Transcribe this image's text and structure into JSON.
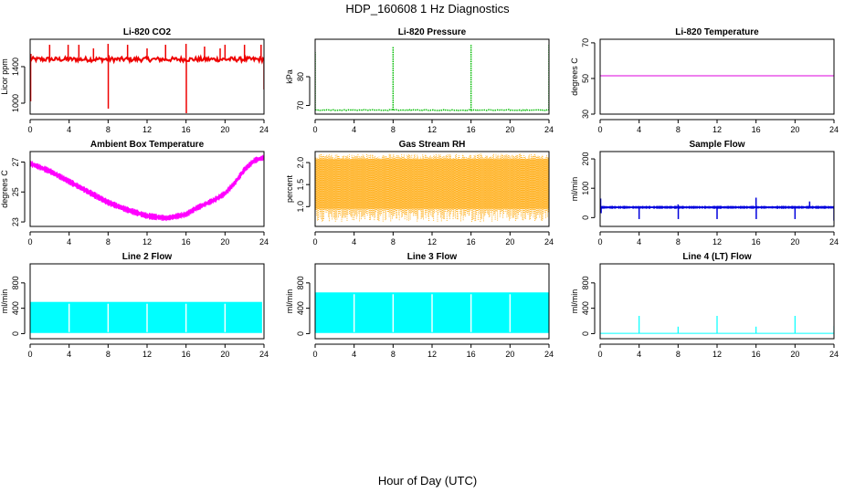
{
  "figure": {
    "title": "HDP_160608  1 Hz Diagnostics",
    "xlabel": "Hour of Day (UTC)"
  },
  "chart_data": [
    {
      "type": "line",
      "title": "Li-820 CO2",
      "ylabel": "Licor ppm",
      "xlim": [
        0,
        24
      ],
      "ylim": [
        880,
        1700
      ],
      "xticks": [
        "0",
        "4",
        "8",
        "12",
        "16",
        "20",
        "24"
      ],
      "yticks": [
        1000,
        1400
      ],
      "color": "#ee0000",
      "style": "dense-line",
      "baseline": 1480,
      "noise": 25,
      "spikes": [
        [
          0.05,
          1020
        ],
        [
          0.08,
          1540
        ],
        [
          2.0,
          1640
        ],
        [
          3.9,
          1640
        ],
        [
          5.0,
          1640
        ],
        [
          6.5,
          1600
        ],
        [
          8.0,
          1650
        ],
        [
          8.02,
          940
        ],
        [
          10.0,
          1640
        ],
        [
          12.0,
          1600
        ],
        [
          13.9,
          1640
        ],
        [
          16.0,
          1650
        ],
        [
          16.03,
          890
        ],
        [
          17.9,
          1620
        ],
        [
          19.5,
          1600
        ],
        [
          20.0,
          1640
        ],
        [
          22.0,
          1640
        ],
        [
          23.7,
          1640
        ],
        [
          24.0,
          1150
        ]
      ]
    },
    {
      "type": "line",
      "title": "Li-820 Pressure",
      "ylabel": "kPa",
      "xlim": [
        0,
        24
      ],
      "ylim": [
        67,
        93
      ],
      "xticks": [
        "0",
        "4",
        "8",
        "12",
        "16",
        "20",
        "24"
      ],
      "yticks": [
        70,
        80
      ],
      "color": "#00bb00",
      "style": "dotted-line",
      "baseline": 68.4,
      "noise": 0.15,
      "spikes": [
        [
          0.0,
          88.5
        ],
        [
          8.0,
          90.5
        ],
        [
          16.0,
          91
        ],
        [
          24.0,
          91
        ]
      ]
    },
    {
      "type": "line",
      "title": "Li-820 Temperature",
      "ylabel": "degrees C",
      "xlim": [
        0,
        24
      ],
      "ylim": [
        30,
        72
      ],
      "xticks": [
        "0",
        "4",
        "8",
        "12",
        "16",
        "20",
        "24"
      ],
      "yticks": [
        30,
        50,
        70
      ],
      "color": "#dd00dd",
      "style": "line",
      "baseline": 51.5,
      "noise": 0,
      "spikes": []
    },
    {
      "type": "line",
      "title": "Ambient Box Temperature",
      "ylabel": "degrees C",
      "xlim": [
        0,
        24
      ],
      "ylim": [
        22.7,
        27.7
      ],
      "xticks": [
        "0",
        "4",
        "8",
        "12",
        "16",
        "20",
        "24"
      ],
      "yticks": [
        23,
        25,
        27
      ],
      "color": "#ff00ff",
      "style": "band",
      "bandwidth": 0.35,
      "x": [
        0,
        2,
        4,
        6,
        8,
        10,
        12,
        14,
        16,
        17,
        18,
        19,
        20,
        21,
        22,
        23,
        24
      ],
      "y": [
        26.9,
        26.4,
        25.7,
        25.0,
        24.3,
        23.8,
        23.4,
        23.25,
        23.5,
        23.9,
        24.2,
        24.5,
        24.9,
        25.6,
        26.5,
        27.1,
        27.3
      ]
    },
    {
      "type": "area",
      "title": "Gas Stream RH",
      "ylabel": "percent",
      "xlim": [
        0,
        24
      ],
      "ylim": [
        0.55,
        2.25
      ],
      "xticks": [
        "0",
        "4",
        "8",
        "12",
        "16",
        "20",
        "24"
      ],
      "yticks": [
        1.0,
        1.5,
        2.0
      ],
      "ytick_labels": [
        "1.0",
        "1.5",
        "2.0"
      ],
      "color": "#ffa500",
      "style": "noise-fill",
      "low": 0.95,
      "high": 2.08,
      "low_min": 0.65,
      "high_max": 2.2
    },
    {
      "type": "line",
      "title": "Sample Flow",
      "ylabel": "ml/min",
      "xlim": [
        0,
        24
      ],
      "ylim": [
        -30,
        225
      ],
      "xticks": [
        "0",
        "4",
        "8",
        "12",
        "16",
        "20",
        "24"
      ],
      "yticks": [
        0,
        100,
        200
      ],
      "color": "#0000dd",
      "style": "band",
      "bandwidth": 8,
      "x": [
        0,
        24
      ],
      "y": [
        35,
        35
      ],
      "spikes": [
        [
          0.05,
          65
        ],
        [
          0.1,
          15
        ],
        [
          4.0,
          -5
        ],
        [
          8.0,
          45
        ],
        [
          8.02,
          -5
        ],
        [
          12.0,
          -5
        ],
        [
          16.0,
          68
        ],
        [
          16.02,
          -5
        ],
        [
          20.0,
          -5
        ],
        [
          21.5,
          55
        ],
        [
          24.0,
          -10
        ]
      ]
    },
    {
      "type": "area",
      "title": "Line 2 Flow",
      "ylabel": "ml/min",
      "xlim": [
        0,
        24
      ],
      "ylim": [
        -80,
        1100
      ],
      "xticks": [
        "0",
        "4",
        "8",
        "12",
        "16",
        "20",
        "24"
      ],
      "yticks": [
        0,
        400,
        800
      ],
      "color": "#00ffff",
      "style": "block",
      "low": 10,
      "high": 500,
      "gaps": [
        4.0,
        8.0,
        12.0,
        16.0,
        20.0
      ],
      "end": 24.0,
      "end_low": 23.8
    },
    {
      "type": "area",
      "title": "Line 3 Flow",
      "ylabel": "ml/min",
      "xlim": [
        0,
        24
      ],
      "ylim": [
        -80,
        1100
      ],
      "xticks": [
        "0",
        "4",
        "8",
        "12",
        "16",
        "20",
        "24"
      ],
      "yticks": [
        0,
        400,
        800
      ],
      "color": "#00ffff",
      "style": "block",
      "low": 10,
      "high": 650,
      "gaps": [
        4.0,
        8.0,
        12.0,
        16.0,
        20.0
      ],
      "end": 24.0,
      "end_low": 24.0
    },
    {
      "type": "line",
      "title": "Line 4 (LT) Flow",
      "ylabel": "ml/min",
      "xlim": [
        0,
        24
      ],
      "ylim": [
        -80,
        1100
      ],
      "xticks": [
        "0",
        "4",
        "8",
        "12",
        "16",
        "20",
        "24"
      ],
      "yticks": [
        0,
        400,
        800
      ],
      "color": "#00ffff",
      "style": "line",
      "baseline": 5,
      "noise": 0,
      "spikes": [
        [
          4.0,
          280
        ],
        [
          8.0,
          110
        ],
        [
          12.0,
          280
        ],
        [
          16.0,
          110
        ],
        [
          20.0,
          280
        ],
        [
          24.0,
          120
        ]
      ]
    }
  ]
}
